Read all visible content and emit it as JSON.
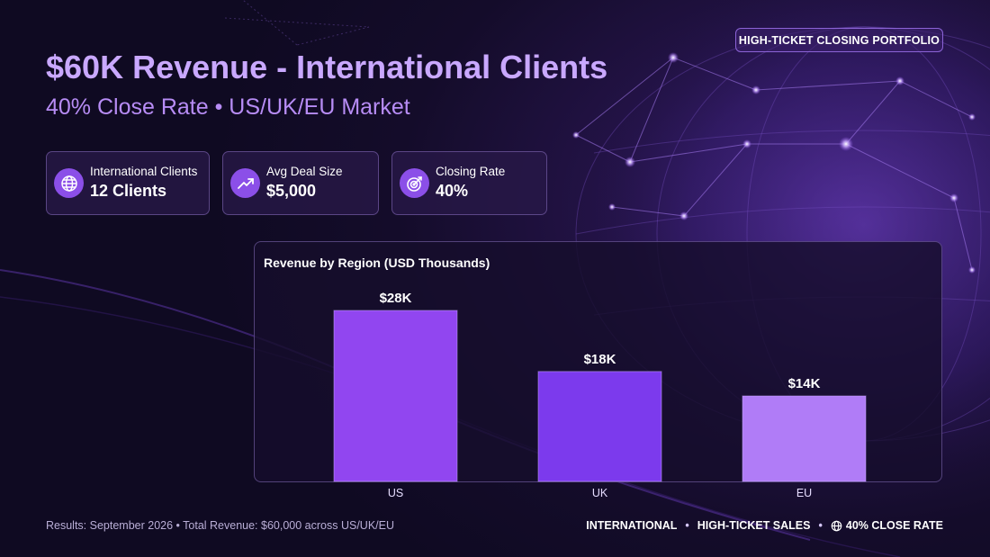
{
  "badge": "HIGH-TICKET CLOSING PORTFOLIO",
  "title": "$60K Revenue - International Clients",
  "subtitle": "40% Close Rate • US/UK/EU Market",
  "stats": [
    {
      "icon": "globe-icon",
      "label": "International Clients",
      "value": "12 Clients"
    },
    {
      "icon": "trending-up-icon",
      "label": "Avg Deal Size",
      "value": "$5,000"
    },
    {
      "icon": "target-icon",
      "label": "Closing Rate",
      "value": "40%"
    }
  ],
  "chart_data": {
    "type": "bar",
    "title": "Revenue by Region (USD Thousands)",
    "categories": [
      "US",
      "UK",
      "EU"
    ],
    "values": [
      28,
      18,
      14
    ],
    "data_labels": [
      "$28K",
      "$18K",
      "$14K"
    ],
    "colors": [
      "#9146f0",
      "#7c3aed",
      "#b07cf7"
    ],
    "ylim": [
      0,
      28
    ],
    "grid": false,
    "xlabel": "",
    "ylabel": ""
  },
  "footer": {
    "left": "Results: September 2026 • Total Revenue: $60,000 across US/UK/EU",
    "tags": [
      "INTERNATIONAL",
      "HIGH-TICKET SALES",
      "40% CLOSE RATE"
    ]
  },
  "colors": {
    "accent": "#8b4fe8",
    "title": "#c9a8ff",
    "subtitle": "#b78cf5",
    "background": "#140c2a"
  }
}
